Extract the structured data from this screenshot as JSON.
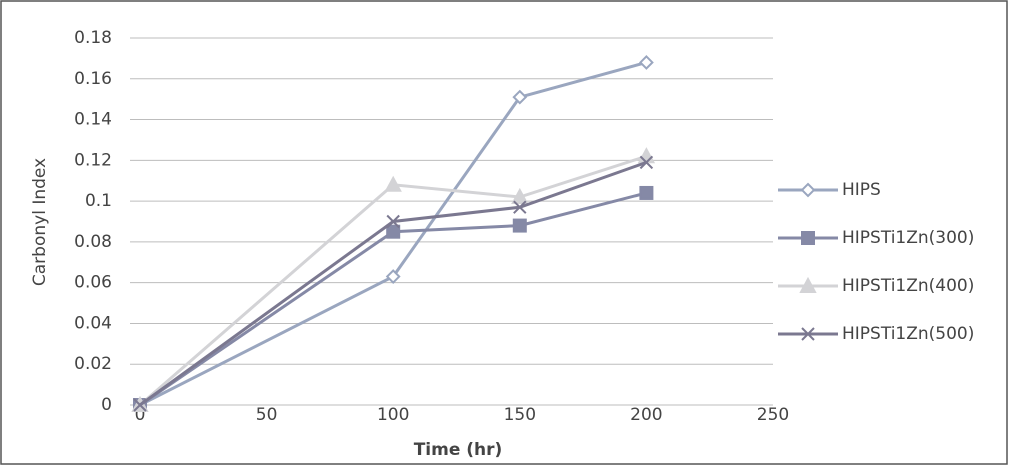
{
  "chart_data": {
    "type": "line",
    "y_label": "Carbonyl Index",
    "x_label": "Time (hr)",
    "xlim": [
      0,
      250
    ],
    "xticks": [
      0,
      50,
      100,
      150,
      200,
      250
    ],
    "ylim": [
      0,
      0.18
    ],
    "yticks": [
      0,
      0.02,
      0.04,
      0.06,
      0.08,
      0.1,
      0.12,
      0.14,
      0.16,
      0.18
    ],
    "grid": true,
    "legend": "right",
    "x": [
      0,
      100,
      150,
      200
    ],
    "series": [
      {
        "name": "HIPS",
        "color": "#9aa6bf",
        "marker": "diamond",
        "values": [
          0,
          0.063,
          0.151,
          0.168
        ]
      },
      {
        "name": "HIPSTi1Zn(300)",
        "color": "#8589a6",
        "marker": "square",
        "values": [
          0,
          0.085,
          0.088,
          0.104
        ]
      },
      {
        "name": "HIPSTi1Zn(400)",
        "color": "#d3d3d6",
        "marker": "triangle",
        "values": [
          0,
          0.108,
          0.102,
          0.122
        ]
      },
      {
        "name": "HIPSTi1Zn(500)",
        "color": "#7b7890",
        "marker": "x",
        "values": [
          0,
          0.09,
          0.097,
          0.119
        ]
      }
    ]
  }
}
